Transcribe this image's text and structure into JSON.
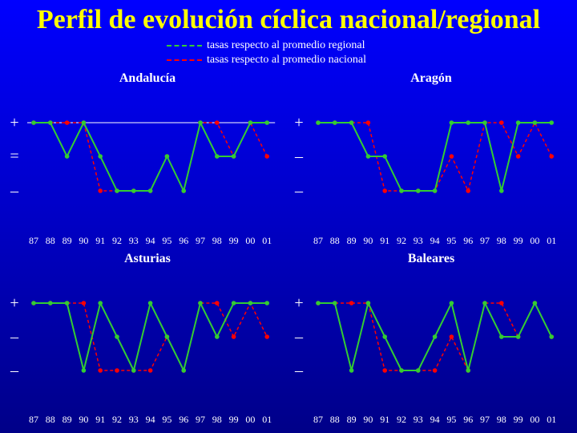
{
  "title": "Perfil de evolución cíclica nacional/regional",
  "legend": [
    {
      "label": "tasas respecto al promedio regional",
      "color": "#33cc33"
    },
    {
      "label": "tasas respecto al promedio nacional",
      "color": "#ff0000"
    }
  ],
  "colors": {
    "regional": "#33cc33",
    "nacional": "#ff0000",
    "text": "#ffffff",
    "title": "#ffff00"
  },
  "chart_data": [
    {
      "type": "line",
      "title": "Andalucía",
      "categories": [
        "87",
        "88",
        "89",
        "90",
        "91",
        "92",
        "93",
        "94",
        "95",
        "96",
        "97",
        "98",
        "99",
        "00",
        "01"
      ],
      "y_levels": [
        "+",
        "=",
        "–"
      ],
      "reference_line": "+",
      "series": [
        {
          "name": "tasas respecto al promedio regional",
          "values": [
            1,
            1,
            0,
            1,
            0,
            -1,
            -1,
            -1,
            0,
            -1,
            1,
            0,
            0,
            1,
            1
          ]
        },
        {
          "name": "tasas respecto al promedio nacional",
          "values": [
            1,
            1,
            1,
            1,
            -1,
            -1,
            -1,
            -1,
            0,
            -1,
            1,
            1,
            0,
            1,
            0
          ]
        }
      ]
    },
    {
      "type": "line",
      "title": "Aragón",
      "categories": [
        "87",
        "88",
        "89",
        "90",
        "91",
        "92",
        "93",
        "94",
        "95",
        "96",
        "97",
        "98",
        "99",
        "00",
        "01"
      ],
      "y_levels": [
        "+",
        "–",
        "–"
      ],
      "series": [
        {
          "name": "tasas respecto al promedio regional",
          "values": [
            1,
            1,
            1,
            0,
            0,
            -1,
            -1,
            -1,
            1,
            1,
            1,
            -1,
            1,
            1,
            1
          ]
        },
        {
          "name": "tasas respecto al promedio nacional",
          "values": [
            1,
            1,
            1,
            1,
            -1,
            -1,
            -1,
            -1,
            0,
            -1,
            1,
            1,
            0,
            1,
            0
          ]
        }
      ]
    },
    {
      "type": "line",
      "title": "Asturias",
      "categories": [
        "87",
        "88",
        "89",
        "90",
        "91",
        "92",
        "93",
        "94",
        "95",
        "96",
        "97",
        "98",
        "99",
        "00",
        "01"
      ],
      "y_levels": [
        "+",
        "–",
        "–"
      ],
      "series": [
        {
          "name": "tasas respecto al promedio regional",
          "values": [
            1,
            1,
            1,
            -1,
            1,
            0,
            -1,
            1,
            0,
            -1,
            1,
            0,
            1,
            1,
            1
          ]
        },
        {
          "name": "tasas respecto al promedio nacional",
          "values": [
            1,
            1,
            1,
            1,
            -1,
            -1,
            -1,
            -1,
            0,
            -1,
            1,
            1,
            0,
            1,
            0
          ]
        }
      ]
    },
    {
      "type": "line",
      "title": "Baleares",
      "categories": [
        "87",
        "88",
        "89",
        "90",
        "91",
        "92",
        "93",
        "94",
        "95",
        "96",
        "97",
        "98",
        "99",
        "00",
        "01"
      ],
      "y_levels": [
        "+",
        "–",
        "–"
      ],
      "series": [
        {
          "name": "tasas respecto al promedio regional",
          "values": [
            1,
            1,
            -1,
            1,
            0,
            -1,
            -1,
            0,
            1,
            -1,
            1,
            0,
            0,
            1,
            0
          ]
        },
        {
          "name": "tasas respecto al promedio nacional",
          "values": [
            1,
            1,
            1,
            1,
            -1,
            -1,
            -1,
            -1,
            0,
            -1,
            1,
            1,
            0,
            1,
            0
          ]
        }
      ]
    }
  ]
}
